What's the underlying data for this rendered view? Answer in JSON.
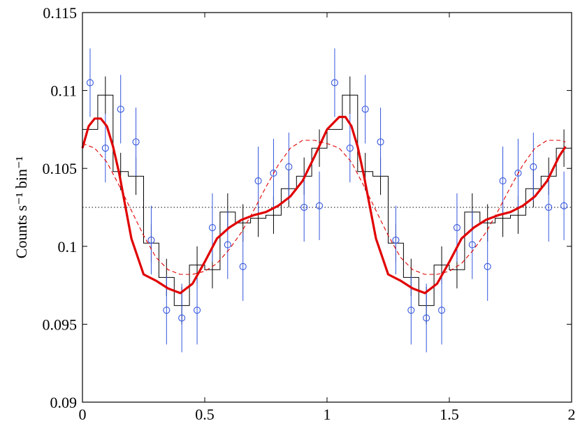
{
  "chart_data": {
    "type": "line",
    "title": "",
    "xlabel": "",
    "ylabel": "Counts s⁻¹ bin⁻¹",
    "xlim": [
      0,
      2
    ],
    "ylim": [
      0.09,
      0.115
    ],
    "x_ticks": [
      "0",
      "0.5",
      "1",
      "1.5",
      "2"
    ],
    "y_ticks": [
      "0.09",
      "0.095",
      "0.1",
      "0.105",
      "0.11",
      "0.115"
    ],
    "x_tick_values": [
      0,
      0.5,
      1,
      1.5,
      2
    ],
    "y_tick_values": [
      0.09,
      0.095,
      0.1,
      0.105,
      0.11,
      0.115
    ],
    "grid": false,
    "reference_line": {
      "y": 0.1025,
      "style": "dotted",
      "color": "#000000"
    },
    "colors": {
      "histogram": "#000000",
      "points": "#3355dd",
      "solid_model": "#e00000",
      "dashed_model": "#e00000"
    },
    "series": [
      {
        "type": "step",
        "color": "#000000",
        "edges": [
          0,
          0.0625,
          0.125,
          0.1875,
          0.25,
          0.3125,
          0.375,
          0.4375,
          0.5,
          0.5625,
          0.625,
          0.6875,
          0.75,
          0.8125,
          0.875,
          0.9375,
          1.0,
          1.0625,
          1.125,
          1.1875,
          1.25,
          1.3125,
          1.375,
          1.4375,
          1.5,
          1.5625,
          1.625,
          1.6875,
          1.75,
          1.8125,
          1.875,
          1.9375,
          2.0
        ],
        "values": [
          0.1075,
          0.1097,
          0.1048,
          0.1045,
          0.1002,
          0.098,
          0.0962,
          0.0988,
          0.0985,
          0.1022,
          0.1015,
          0.1018,
          0.102,
          0.1037,
          0.1045,
          0.1063,
          0.1075,
          0.1097,
          0.1048,
          0.1045,
          0.1002,
          0.098,
          0.0962,
          0.0988,
          0.0985,
          0.1022,
          0.1015,
          0.1018,
          0.102,
          0.1037,
          0.1045,
          0.1063
        ],
        "errors": [
          0.0,
          0.0012,
          0.0012,
          0.0012,
          0.0012,
          0.0012,
          0.0012,
          0.0012,
          0.0012,
          0.0012,
          0.0012,
          0.0012,
          0.0012,
          0.0012,
          0.0012,
          0.0012,
          0.0,
          0.0012,
          0.0012,
          0.0012,
          0.0012,
          0.0012,
          0.0012,
          0.0012,
          0.0012,
          0.0012,
          0.0012,
          0.0012,
          0.0012,
          0.0012,
          0.0012,
          0.0012
        ]
      },
      {
        "type": "scatter",
        "color": "#3355dd",
        "marker": "circle",
        "x": [
          0.03125,
          0.09375,
          0.15625,
          0.21875,
          0.28125,
          0.34375,
          0.40625,
          0.46875,
          0.53125,
          0.59375,
          0.65625,
          0.71875,
          0.78125,
          0.84375,
          0.90625,
          0.96875,
          1.03125,
          1.09375,
          1.15625,
          1.21875,
          1.28125,
          1.34375,
          1.40625,
          1.46875,
          1.53125,
          1.59375,
          1.65625,
          1.71875,
          1.78125,
          1.84375,
          1.90625,
          1.96875
        ],
        "y": [
          0.1105,
          0.1063,
          0.1088,
          0.1067,
          0.1004,
          0.0959,
          0.0954,
          0.0959,
          0.1012,
          0.1001,
          0.0987,
          0.1042,
          0.1047,
          0.1051,
          0.1025,
          0.1026,
          0.1105,
          0.1063,
          0.1088,
          0.1067,
          0.1004,
          0.0959,
          0.0954,
          0.0959,
          0.1012,
          0.1001,
          0.0987,
          0.1042,
          0.1047,
          0.1051,
          0.1025,
          0.1026
        ],
        "errors": [
          0.0022,
          0.0022,
          0.0022,
          0.0022,
          0.0022,
          0.0022,
          0.0022,
          0.0022,
          0.0022,
          0.0022,
          0.0022,
          0.0022,
          0.0022,
          0.0022,
          0.0022,
          0.0022,
          0.0022,
          0.0022,
          0.0022,
          0.0022,
          0.0022,
          0.0022,
          0.0022,
          0.0022,
          0.0022,
          0.0022,
          0.0022,
          0.0022,
          0.0022,
          0.0022,
          0.0022,
          0.0022
        ]
      },
      {
        "type": "line",
        "style": "solid",
        "color": "#e00000",
        "x": [
          0,
          0.025,
          0.05,
          0.075,
          0.1,
          0.125,
          0.15,
          0.2,
          0.25,
          0.3,
          0.35,
          0.4,
          0.45,
          0.5,
          0.55,
          0.6,
          0.65,
          0.7,
          0.75,
          0.8,
          0.85,
          0.9,
          0.95,
          1.0,
          1.025,
          1.05,
          1.075,
          1.1,
          1.125,
          1.15,
          1.2,
          1.25,
          1.3,
          1.35,
          1.4,
          1.45,
          1.5,
          1.55,
          1.6,
          1.65,
          1.7,
          1.75,
          1.8,
          1.85,
          1.9,
          1.95,
          1.975
        ],
        "y": [
          0.1063,
          0.1077,
          0.1082,
          0.1082,
          0.1077,
          0.1064,
          0.1047,
          0.1005,
          0.0982,
          0.0978,
          0.0973,
          0.097,
          0.0976,
          0.099,
          0.1005,
          0.1012,
          0.1017,
          0.102,
          0.1022,
          0.1026,
          0.1032,
          0.1042,
          0.1058,
          0.1075,
          0.1079,
          0.1083,
          0.1083,
          0.1077,
          0.1064,
          0.1046,
          0.1005,
          0.0982,
          0.0978,
          0.0973,
          0.097,
          0.0976,
          0.099,
          0.1005,
          0.1012,
          0.1017,
          0.102,
          0.1022,
          0.1026,
          0.1032,
          0.1042,
          0.1058,
          0.1064
        ]
      },
      {
        "type": "line",
        "style": "dashed",
        "color": "#e00000",
        "x": [
          0,
          0.05,
          0.1,
          0.15,
          0.2,
          0.25,
          0.3,
          0.35,
          0.4,
          0.45,
          0.5,
          0.55,
          0.6,
          0.65,
          0.7,
          0.75,
          0.8,
          0.85,
          0.9,
          0.95,
          1.0,
          1.05,
          1.1,
          1.15,
          1.2,
          1.25,
          1.3,
          1.35,
          1.4,
          1.45,
          1.5,
          1.55,
          1.6,
          1.65,
          1.7,
          1.75,
          1.8,
          1.85,
          1.9,
          1.95,
          1.975
        ],
        "y": [
          0.1066,
          0.1063,
          0.1054,
          0.1039,
          0.1023,
          0.1007,
          0.0993,
          0.0985,
          0.0982,
          0.0982,
          0.0984,
          0.0989,
          0.0998,
          0.1009,
          0.1023,
          0.1038,
          0.1052,
          0.1063,
          0.1068,
          0.1068,
          0.1066,
          0.1063,
          0.1054,
          0.1039,
          0.1023,
          0.1007,
          0.0993,
          0.0985,
          0.0982,
          0.0982,
          0.0984,
          0.0989,
          0.0998,
          0.1009,
          0.1023,
          0.1038,
          0.1052,
          0.1063,
          0.1068,
          0.1068,
          0.1067
        ]
      }
    ]
  }
}
